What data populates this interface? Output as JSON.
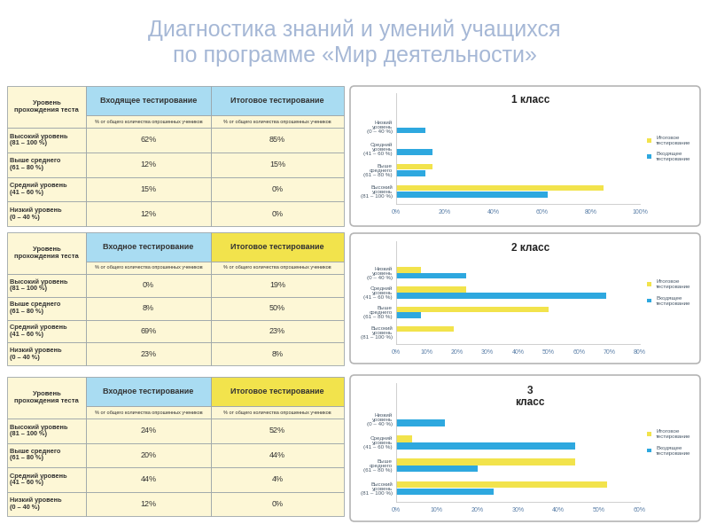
{
  "title": "Диагностика знаний и умений учащихся\nпо программе «Мир деятельности»",
  "tables": [
    {
      "columns": [
        "Уровень\nпрохождения теста",
        "Входящее тестирование",
        "Итоговое тестирование"
      ],
      "units": [
        "% от общего количества опрошенных учеников",
        "% от общего количества опрошенных учеников"
      ],
      "rows": [
        [
          "Высокий уровень\n(81 – 100 %)",
          "62%",
          "85%"
        ],
        [
          "Выше среднего\n(61 – 80 %)",
          "12%",
          "15%"
        ],
        [
          "Средний уровень\n(41 – 60 %)",
          "15%",
          "0%"
        ],
        [
          "Низкий уровень\n(0 – 40 %)",
          "12%",
          "0%"
        ]
      ]
    },
    {
      "columns": [
        "Уровень\nпрохождения теста",
        "Входное тестирование",
        "Итоговое тестирование"
      ],
      "units": [
        "% от общего количества опрошенных учеников",
        "% от общего количества опрошенных учеников"
      ],
      "rows": [
        [
          "Высокий уровень\n(81 – 100 %)",
          "0%",
          "19%"
        ],
        [
          "Выше среднего\n(61 – 80 %)",
          "8%",
          "50%"
        ],
        [
          "Средний уровень\n(41 – 60 %)",
          "69%",
          "23%"
        ],
        [
          "Низкий уровень\n(0 – 40 %)",
          "23%",
          "8%"
        ]
      ]
    },
    {
      "columns": [
        "Уровень\nпрохождения теста",
        "Входное тестирование",
        "Итоговое тестирование"
      ],
      "units": [
        "% от общего количества опрошенных учеников",
        "% от общего количества опрошенных учеников"
      ],
      "rows": [
        [
          "Высокий уровень\n(81 – 100 %)",
          "24%",
          "52%"
        ],
        [
          "Выше среднего\n(61 – 80 %)",
          "20%",
          "44%"
        ],
        [
          "Средний уровень\n(41 – 60 %)",
          "44%",
          "4%"
        ],
        [
          "Низкий уровень\n(0 – 40 %)",
          "12%",
          "0%"
        ]
      ]
    }
  ],
  "chart_data": [
    {
      "type": "bar",
      "orientation": "horizontal",
      "title": "1 класс",
      "categories": [
        "Низкий\nуровень\n(0 – 40 %)",
        "Средний\nуровень\n(41 – 60 %)",
        "Выше\nсреднего\n(61 – 80 %)",
        "Высокий\nуровень\n(81 – 100 %)"
      ],
      "series": [
        {
          "name": "Итоговое\nтестирование",
          "color": "#f2e34c",
          "values": [
            0,
            0,
            15,
            85
          ]
        },
        {
          "name": "Входящее\nтестирование",
          "color": "#2ea8df",
          "values": [
            12,
            15,
            12,
            62
          ]
        }
      ],
      "xlim": [
        0,
        100
      ],
      "xticks": [
        {
          "value": 0,
          "label": "0%"
        },
        {
          "value": 20,
          "label": "20%"
        },
        {
          "value": 40,
          "label": "40%"
        },
        {
          "value": 60,
          "label": "60%"
        },
        {
          "value": 80,
          "label": "80%"
        },
        {
          "value": 100,
          "label": "100%"
        }
      ],
      "grid": false,
      "legend": "right"
    },
    {
      "type": "bar",
      "orientation": "horizontal",
      "title": "2 класс",
      "categories": [
        "Низкий\nуровень\n(0 – 40 %)",
        "Средний\nуровень\n(41 – 60 %)",
        "Выше\nсреднего\n(61 – 80 %)",
        "Высокий\nуровень\n(81 – 100 %)"
      ],
      "series": [
        {
          "name": "Итоговое\nтестирование",
          "color": "#f2e34c",
          "values": [
            8,
            23,
            50,
            19
          ]
        },
        {
          "name": "Входящее\nтестирование",
          "color": "#2ea8df",
          "values": [
            23,
            69,
            8,
            0
          ]
        }
      ],
      "xlim": [
        0,
        80
      ],
      "xticks": [
        {
          "value": 0,
          "label": "0%"
        },
        {
          "value": 10,
          "label": "10%"
        },
        {
          "value": 20,
          "label": "20%"
        },
        {
          "value": 30,
          "label": "30%"
        },
        {
          "value": 40,
          "label": "40%"
        },
        {
          "value": 50,
          "label": "50%"
        },
        {
          "value": 60,
          "label": "60%"
        },
        {
          "value": 70,
          "label": "70%"
        },
        {
          "value": 80,
          "label": "80%"
        }
      ],
      "grid": false,
      "legend": "right"
    },
    {
      "type": "bar",
      "orientation": "horizontal",
      "title": "3\nкласс",
      "categories": [
        "Низкий\nуровень\n(0 – 40 %)",
        "Средний\nуровень\n(41 – 60 %)",
        "Выше\nсреднего\n(61 – 80 %)",
        "Высокий\nуровень\n(81 – 100 %)"
      ],
      "series": [
        {
          "name": "Итоговое\nтестирование",
          "color": "#f2e34c",
          "values": [
            0,
            4,
            44,
            52
          ]
        },
        {
          "name": "Входящее\nтестирование",
          "color": "#2ea8df",
          "values": [
            12,
            44,
            20,
            24
          ]
        }
      ],
      "xlim": [
        0,
        60
      ],
      "xticks": [
        {
          "value": 0,
          "label": "0%"
        },
        {
          "value": 10,
          "label": "10%"
        },
        {
          "value": 20,
          "label": "20%"
        },
        {
          "value": 30,
          "label": "30%"
        },
        {
          "value": 40,
          "label": "40%"
        },
        {
          "value": 50,
          "label": "50%"
        },
        {
          "value": 60,
          "label": "60%"
        }
      ],
      "grid": false,
      "legend": "right"
    }
  ]
}
